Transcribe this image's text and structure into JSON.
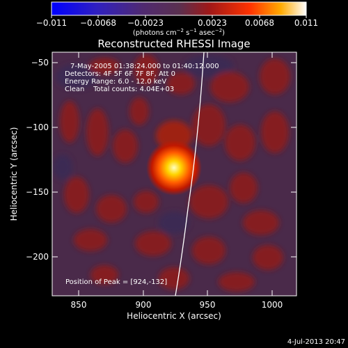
{
  "colorbar": {
    "ticks": [
      "−0.011",
      "−0.0068",
      "−0.0023",
      "0.0023",
      "0.0068",
      "0.011"
    ],
    "units_main": "(photons cm",
    "units_exp1": "−2",
    "units_mid1": " s",
    "units_exp2": "−1",
    "units_mid2": " asec",
    "units_exp3": "−2",
    "units_end": ")"
  },
  "title": "Reconstructed RHESSI Image",
  "annotation": {
    "time_range": "7‑May‑2005 01:38:24.000 to 01:40:12.000",
    "detectors": "Detectors: 4F 5F 6F 7F 8F, Att 0",
    "energy": "Energy Range: 6.0 ‑ 12.0 keV",
    "clean": "Clean    Total counts: 4.04E+03",
    "peak": "Position of Peak = [924,‑132]"
  },
  "axes": {
    "xlabel": "Heliocentric X (arcsec)",
    "ylabel": "Heliocentric Y (arcsec)",
    "x_ticks": [
      "850",
      "900",
      "950",
      "1000"
    ],
    "y_ticks": [
      "−50",
      "−100",
      "−150",
      "−200"
    ]
  },
  "footer_date": "4‑Jul‑2013 20:47",
  "palette": {
    "negative": "#1a1aff",
    "background": "#4a2a4a",
    "blob": "#a01010",
    "peak_outer": "#ff5500",
    "peak_core": "#ffff80"
  }
}
